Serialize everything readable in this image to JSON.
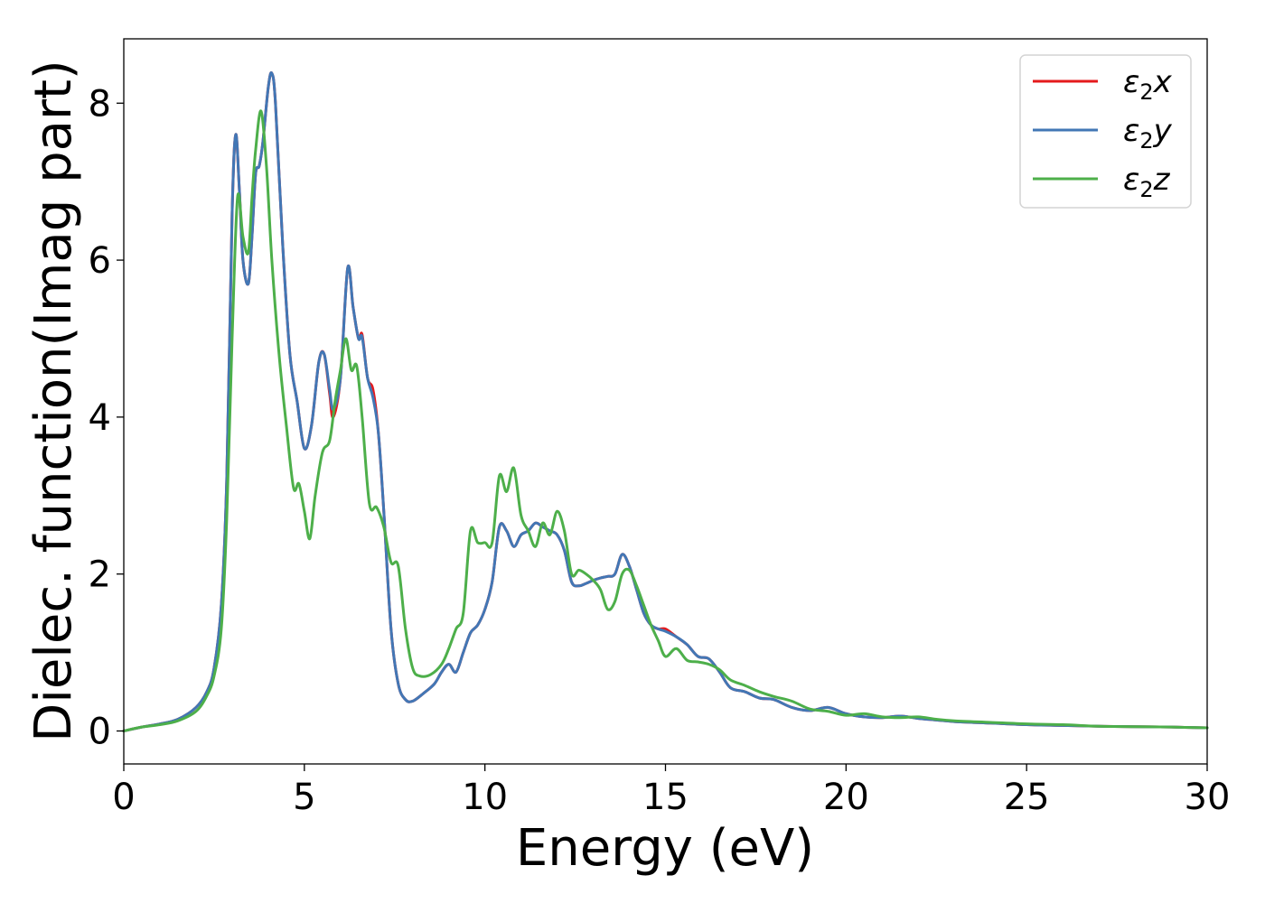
{
  "chart_data": {
    "type": "line",
    "title": "",
    "xlabel": "Energy (eV)",
    "ylabel": "Dielec. function(Imag part)",
    "xlim": [
      0,
      30
    ],
    "ylim": [
      -0.42,
      8.82
    ],
    "xticks": [
      0,
      5,
      10,
      15,
      20,
      25,
      30
    ],
    "yticks": [
      0,
      2,
      4,
      6,
      8
    ],
    "grid": false,
    "legend_position": "top-right",
    "series": [
      {
        "name": "ε2x",
        "name_base": "ε",
        "name_sub": "2",
        "name_suffix": "x",
        "color": "#e41a1c",
        "x": [
          0,
          0.5,
          1,
          1.5,
          2,
          2.3,
          2.5,
          2.7,
          2.85,
          3.0,
          3.1,
          3.2,
          3.3,
          3.45,
          3.55,
          3.65,
          3.75,
          3.85,
          4.0,
          4.1,
          4.2,
          4.4,
          4.6,
          4.8,
          5.0,
          5.2,
          5.4,
          5.55,
          5.7,
          5.8,
          6.0,
          6.2,
          6.35,
          6.5,
          6.6,
          6.75,
          6.9,
          7.05,
          7.2,
          7.4,
          7.6,
          7.8,
          8.0,
          8.3,
          8.6,
          8.8,
          9.0,
          9.2,
          9.4,
          9.6,
          9.8,
          10.0,
          10.2,
          10.4,
          10.6,
          10.8,
          11.0,
          11.2,
          11.4,
          11.6,
          11.8,
          12.0,
          12.2,
          12.4,
          12.6,
          12.8,
          13.0,
          13.2,
          13.4,
          13.6,
          13.8,
          14.0,
          14.2,
          14.4,
          14.6,
          14.8,
          15.0,
          15.3,
          15.6,
          15.9,
          16.2,
          16.5,
          16.8,
          17.2,
          17.6,
          18.0,
          18.5,
          19.0,
          19.5,
          20.0,
          20.5,
          21.0,
          21.5,
          22.0,
          22.5,
          23.0,
          24.0,
          25.0,
          26.0,
          27.0,
          28.0,
          29.0,
          30.0
        ],
        "values": [
          0,
          0.05,
          0.09,
          0.15,
          0.3,
          0.5,
          0.8,
          1.6,
          3.2,
          6.6,
          7.6,
          6.9,
          6.0,
          5.7,
          6.3,
          7.1,
          7.2,
          7.5,
          8.2,
          8.38,
          8.0,
          6.2,
          4.8,
          4.2,
          3.6,
          3.9,
          4.7,
          4.8,
          4.3,
          4.0,
          4.5,
          5.9,
          5.4,
          5.0,
          5.05,
          4.5,
          4.35,
          3.8,
          2.8,
          1.3,
          0.6,
          0.4,
          0.38,
          0.48,
          0.6,
          0.75,
          0.85,
          0.75,
          1.0,
          1.25,
          1.35,
          1.55,
          1.9,
          2.6,
          2.55,
          2.35,
          2.5,
          2.55,
          2.65,
          2.6,
          2.55,
          2.5,
          2.3,
          1.9,
          1.85,
          1.88,
          1.92,
          1.95,
          1.97,
          2.0,
          2.25,
          2.1,
          1.8,
          1.5,
          1.35,
          1.3,
          1.3,
          1.2,
          1.1,
          0.95,
          0.92,
          0.75,
          0.55,
          0.5,
          0.42,
          0.4,
          0.3,
          0.26,
          0.3,
          0.22,
          0.18,
          0.17,
          0.19,
          0.16,
          0.14,
          0.12,
          0.1,
          0.08,
          0.07,
          0.06,
          0.055,
          0.05,
          0.04
        ]
      },
      {
        "name": "ε2y",
        "name_base": "ε",
        "name_sub": "2",
        "name_suffix": "y",
        "color": "#4277b5",
        "x": [
          0,
          0.5,
          1,
          1.5,
          2,
          2.3,
          2.5,
          2.7,
          2.85,
          3.0,
          3.1,
          3.2,
          3.3,
          3.45,
          3.55,
          3.65,
          3.75,
          3.85,
          4.0,
          4.1,
          4.2,
          4.4,
          4.6,
          4.8,
          5.0,
          5.2,
          5.4,
          5.55,
          5.7,
          5.8,
          6.0,
          6.2,
          6.35,
          6.5,
          6.6,
          6.75,
          6.9,
          7.05,
          7.2,
          7.4,
          7.6,
          7.8,
          8.0,
          8.3,
          8.6,
          8.8,
          9.0,
          9.2,
          9.4,
          9.6,
          9.8,
          10.0,
          10.2,
          10.4,
          10.6,
          10.8,
          11.0,
          11.2,
          11.4,
          11.6,
          11.8,
          12.0,
          12.2,
          12.4,
          12.6,
          12.8,
          13.0,
          13.2,
          13.4,
          13.6,
          13.8,
          14.0,
          14.2,
          14.4,
          14.6,
          14.8,
          15.0,
          15.3,
          15.6,
          15.9,
          16.2,
          16.5,
          16.8,
          17.2,
          17.6,
          18.0,
          18.5,
          19.0,
          19.5,
          20.0,
          20.5,
          21.0,
          21.5,
          22.0,
          22.5,
          23.0,
          24.0,
          25.0,
          26.0,
          27.0,
          28.0,
          29.0,
          30.0
        ],
        "values": [
          0,
          0.05,
          0.09,
          0.15,
          0.3,
          0.5,
          0.8,
          1.6,
          3.2,
          6.6,
          7.6,
          6.9,
          6.0,
          5.7,
          6.3,
          7.1,
          7.2,
          7.5,
          8.2,
          8.38,
          8.0,
          6.2,
          4.8,
          4.2,
          3.6,
          3.9,
          4.7,
          4.8,
          4.35,
          4.1,
          4.5,
          5.9,
          5.4,
          5.0,
          5.02,
          4.5,
          4.25,
          3.8,
          2.8,
          1.3,
          0.6,
          0.4,
          0.38,
          0.48,
          0.6,
          0.75,
          0.85,
          0.75,
          1.0,
          1.25,
          1.35,
          1.55,
          1.9,
          2.6,
          2.55,
          2.35,
          2.5,
          2.55,
          2.65,
          2.6,
          2.55,
          2.5,
          2.3,
          1.9,
          1.85,
          1.88,
          1.92,
          1.95,
          1.97,
          2.0,
          2.25,
          2.1,
          1.8,
          1.5,
          1.35,
          1.3,
          1.27,
          1.2,
          1.1,
          0.95,
          0.92,
          0.75,
          0.55,
          0.5,
          0.42,
          0.4,
          0.3,
          0.26,
          0.3,
          0.22,
          0.18,
          0.17,
          0.19,
          0.16,
          0.14,
          0.12,
          0.1,
          0.08,
          0.07,
          0.06,
          0.055,
          0.05,
          0.04
        ]
      },
      {
        "name": "ε2z",
        "name_base": "ε",
        "name_sub": "2",
        "name_suffix": "z",
        "color": "#4daf4a",
        "x": [
          0,
          0.5,
          1,
          1.5,
          2,
          2.3,
          2.5,
          2.7,
          2.85,
          3.0,
          3.15,
          3.3,
          3.45,
          3.55,
          3.65,
          3.8,
          3.95,
          4.1,
          4.3,
          4.5,
          4.7,
          4.85,
          5.0,
          5.15,
          5.3,
          5.5,
          5.7,
          5.85,
          6.0,
          6.15,
          6.3,
          6.45,
          6.6,
          6.8,
          7.0,
          7.2,
          7.4,
          7.6,
          7.8,
          8.0,
          8.2,
          8.5,
          8.8,
          9.0,
          9.2,
          9.4,
          9.6,
          9.8,
          10.0,
          10.2,
          10.4,
          10.6,
          10.8,
          11.0,
          11.2,
          11.4,
          11.6,
          11.8,
          12.0,
          12.2,
          12.4,
          12.6,
          12.8,
          13.0,
          13.2,
          13.4,
          13.6,
          13.8,
          14.0,
          14.2,
          14.4,
          14.6,
          14.8,
          15.0,
          15.3,
          15.6,
          15.9,
          16.2,
          16.5,
          16.8,
          17.2,
          17.6,
          18.0,
          18.5,
          19.0,
          19.5,
          20.0,
          20.5,
          21.0,
          21.5,
          22.0,
          22.5,
          23.0,
          24.0,
          25.0,
          26.0,
          27.0,
          28.0,
          29.0,
          30.0
        ],
        "values": [
          0,
          0.05,
          0.08,
          0.13,
          0.25,
          0.45,
          0.7,
          1.3,
          2.7,
          5.0,
          6.8,
          6.3,
          6.1,
          6.8,
          7.4,
          7.9,
          7.2,
          6.0,
          4.8,
          3.9,
          3.1,
          3.15,
          2.8,
          2.45,
          3.0,
          3.55,
          3.7,
          4.2,
          4.6,
          5.0,
          4.6,
          4.65,
          4.0,
          2.9,
          2.85,
          2.6,
          2.15,
          2.1,
          1.3,
          0.8,
          0.7,
          0.72,
          0.85,
          1.05,
          1.3,
          1.5,
          2.55,
          2.4,
          2.4,
          2.4,
          3.25,
          3.05,
          3.35,
          2.75,
          2.55,
          2.35,
          2.65,
          2.5,
          2.8,
          2.55,
          2.0,
          2.05,
          2.0,
          1.92,
          1.8,
          1.55,
          1.65,
          2.0,
          2.05,
          1.85,
          1.6,
          1.35,
          1.15,
          0.95,
          1.05,
          0.9,
          0.88,
          0.85,
          0.78,
          0.65,
          0.58,
          0.5,
          0.44,
          0.38,
          0.28,
          0.25,
          0.2,
          0.22,
          0.18,
          0.17,
          0.18,
          0.15,
          0.13,
          0.11,
          0.09,
          0.08,
          0.06,
          0.055,
          0.05,
          0.04
        ]
      }
    ]
  }
}
